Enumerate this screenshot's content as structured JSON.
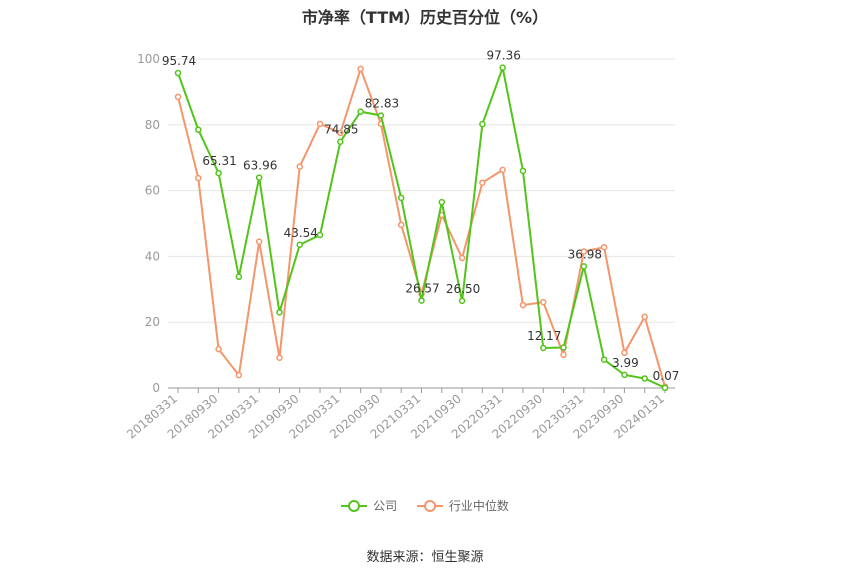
{
  "chart_data": {
    "type": "line",
    "title": "市净率（TTM）历史百分位（%）",
    "x": [
      "20180331",
      "20180630",
      "20180930",
      "20181231",
      "20190331",
      "20190630",
      "20190930",
      "20191231",
      "20200331",
      "20200630",
      "20200930",
      "20201231",
      "20210331",
      "20210630",
      "20210930",
      "20211231",
      "20220331",
      "20220630",
      "20220930",
      "20221231",
      "20230331",
      "20230630",
      "20230930",
      "20231231",
      "20240131"
    ],
    "x_tick_labels": [
      "20180331",
      "20180930",
      "20190331",
      "20190930",
      "20200331",
      "20200930",
      "20210331",
      "20210930",
      "20220331",
      "20220930",
      "20230331",
      "20230930",
      "20240131"
    ],
    "ylim": [
      0,
      100
    ],
    "y_ticks": [
      0,
      20,
      40,
      60,
      80,
      100
    ],
    "grid": true,
    "legend_position": "bottom",
    "series": [
      {
        "name": "公司",
        "color": "#52c41a",
        "values": [
          95.74,
          78.5,
          65.31,
          33.8,
          63.96,
          23.0,
          43.54,
          46.5,
          74.85,
          84.0,
          82.83,
          57.8,
          26.57,
          56.5,
          26.5,
          80.2,
          97.36,
          66.0,
          12.17,
          12.3,
          36.98,
          8.6,
          3.99,
          2.9,
          0.07
        ],
        "labels": [
          "95.74",
          "",
          "65.31",
          "",
          "63.96",
          "",
          "43.54",
          "",
          "74.85",
          "",
          "82.83",
          "",
          "26.57",
          "",
          "26.50",
          "",
          "97.36",
          "",
          "12.17",
          "",
          "36.98",
          "",
          "3.99",
          "",
          "0.07"
        ]
      },
      {
        "name": "行业中位数",
        "color": "#f4956b",
        "values": [
          88.5,
          63.8,
          11.8,
          3.9,
          44.5,
          9.2,
          67.3,
          80.3,
          77.5,
          97.0,
          80.3,
          49.6,
          28.6,
          52.6,
          39.5,
          62.4,
          66.3,
          25.2,
          26.1,
          10.1,
          41.5,
          42.8,
          10.7,
          21.6,
          0.4
        ]
      }
    ]
  },
  "source_note": "数据来源：恒生聚源"
}
